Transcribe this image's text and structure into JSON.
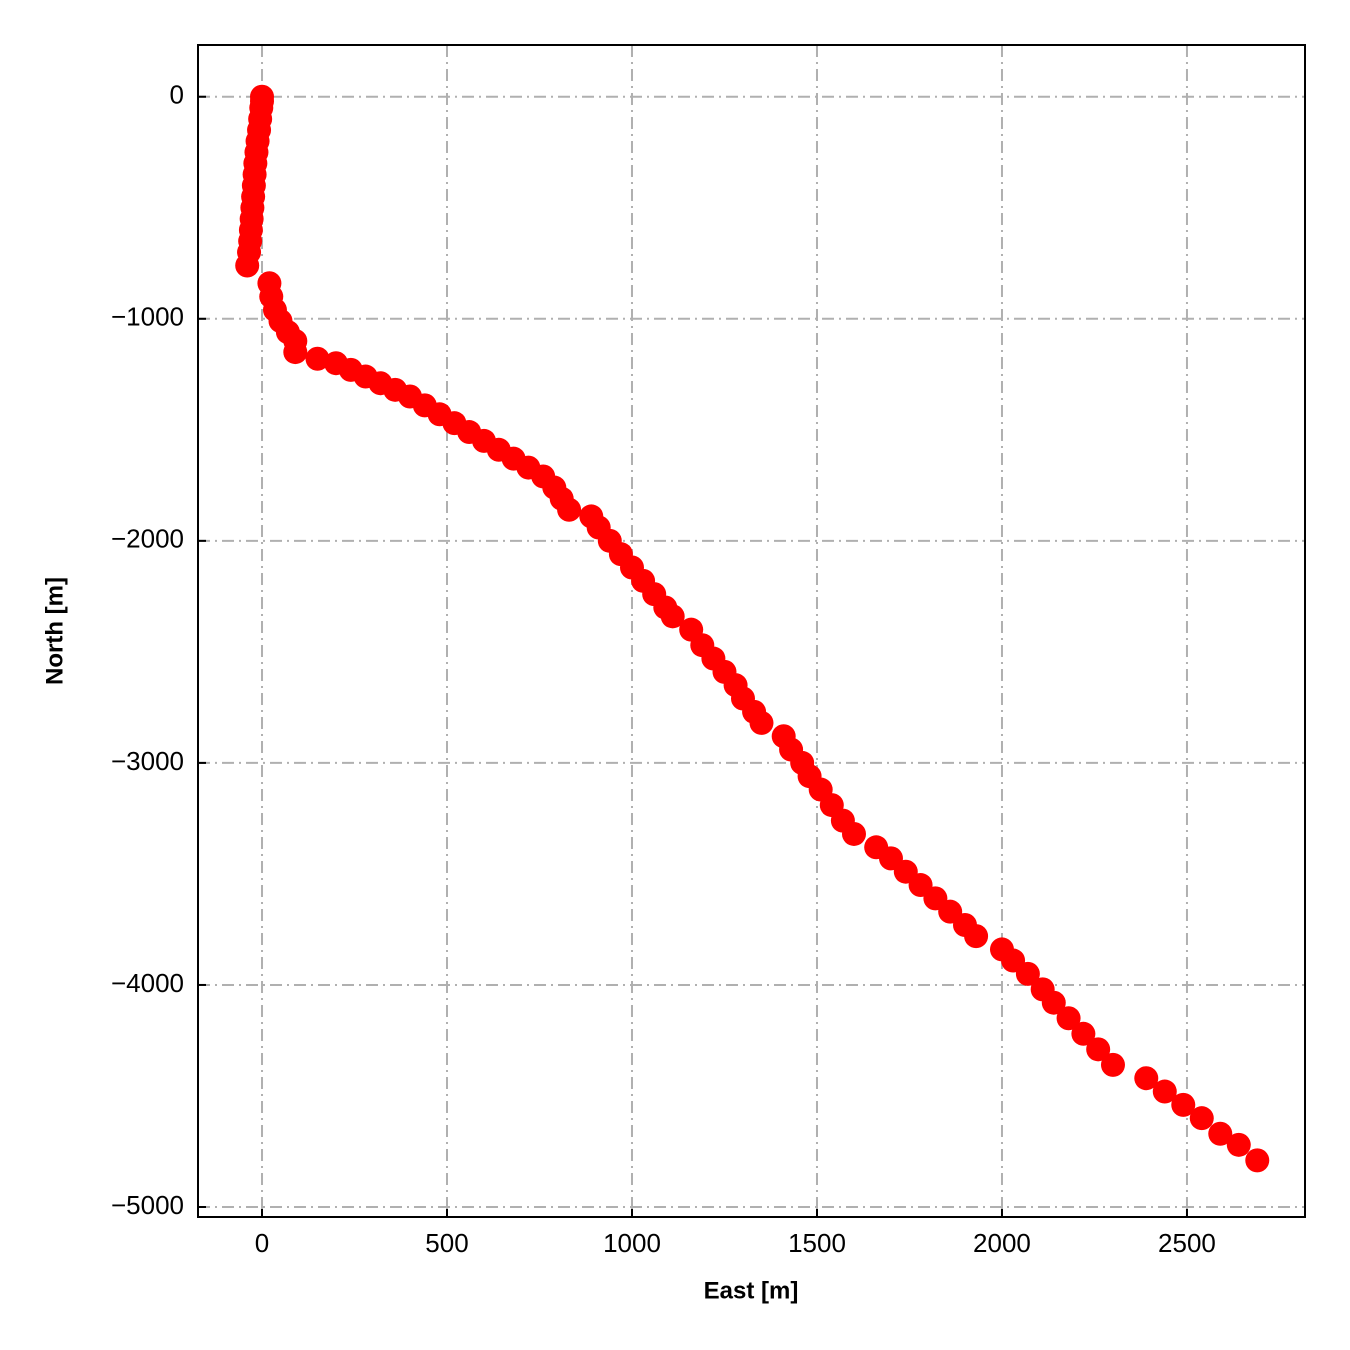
{
  "chart_data": {
    "type": "scatter",
    "x_label": "East [m]",
    "y_label": "North [m]",
    "xlim": [
      -173,
      2819
    ],
    "ylim": [
      -5045,
      233
    ],
    "xticks": [
      0,
      500,
      1000,
      1500,
      2000,
      2500
    ],
    "yticks": [
      0,
      {
        "value": -1000,
        "label": "−1000"
      },
      {
        "value": -2000,
        "label": "−2000"
      },
      {
        "value": -3000,
        "label": "−3000"
      },
      {
        "value": -4000,
        "label": "−4000"
      },
      {
        "value": -5000,
        "label": "−5000"
      }
    ],
    "grid": true,
    "series": [
      {
        "color": "#ff0000",
        "x": [
          0,
          0,
          -2,
          -5,
          -8,
          -12,
          -15,
          -18,
          -20,
          -22,
          -24,
          -26,
          -28,
          -30,
          -32,
          -35,
          -40,
          20,
          25,
          35,
          50,
          70,
          90,
          90,
          150,
          200,
          240,
          280,
          320,
          360,
          400,
          440,
          480,
          520,
          560,
          600,
          640,
          680,
          720,
          760,
          790,
          810,
          830,
          890,
          910,
          940,
          970,
          1000,
          1030,
          1060,
          1090,
          1110,
          1160,
          1190,
          1220,
          1250,
          1280,
          1300,
          1330,
          1350,
          1410,
          1430,
          1460,
          1480,
          1510,
          1540,
          1570,
          1600,
          1660,
          1700,
          1740,
          1780,
          1820,
          1860,
          1900,
          1930,
          2000,
          2030,
          2070,
          2110,
          2140,
          2180,
          2220,
          2260,
          2300,
          2390,
          2440,
          2490,
          2540,
          2590,
          2640,
          2690
        ],
        "values": [
          0,
          -20,
          -50,
          -100,
          -150,
          -200,
          -250,
          -300,
          -350,
          -400,
          -450,
          -500,
          -550,
          -600,
          -650,
          -700,
          -760,
          -840,
          -900,
          -960,
          -1010,
          -1060,
          -1100,
          -1150,
          -1180,
          -1200,
          -1230,
          -1260,
          -1290,
          -1320,
          -1350,
          -1390,
          -1430,
          -1470,
          -1510,
          -1550,
          -1590,
          -1630,
          -1670,
          -1710,
          -1760,
          -1810,
          -1860,
          -1890,
          -1940,
          -2000,
          -2060,
          -2120,
          -2180,
          -2240,
          -2300,
          -2340,
          -2400,
          -2470,
          -2530,
          -2590,
          -2650,
          -2710,
          -2770,
          -2820,
          -2880,
          -2940,
          -3000,
          -3060,
          -3120,
          -3190,
          -3260,
          -3320,
          -3380,
          -3430,
          -3490,
          -3550,
          -3610,
          -3670,
          -3730,
          -3780,
          -3840,
          -3890,
          -3950,
          -4020,
          -4080,
          -4150,
          -4220,
          -4290,
          -4360,
          -4420,
          -4480,
          -4540,
          -4600,
          -4670,
          -4720,
          -4790
        ]
      }
    ]
  }
}
